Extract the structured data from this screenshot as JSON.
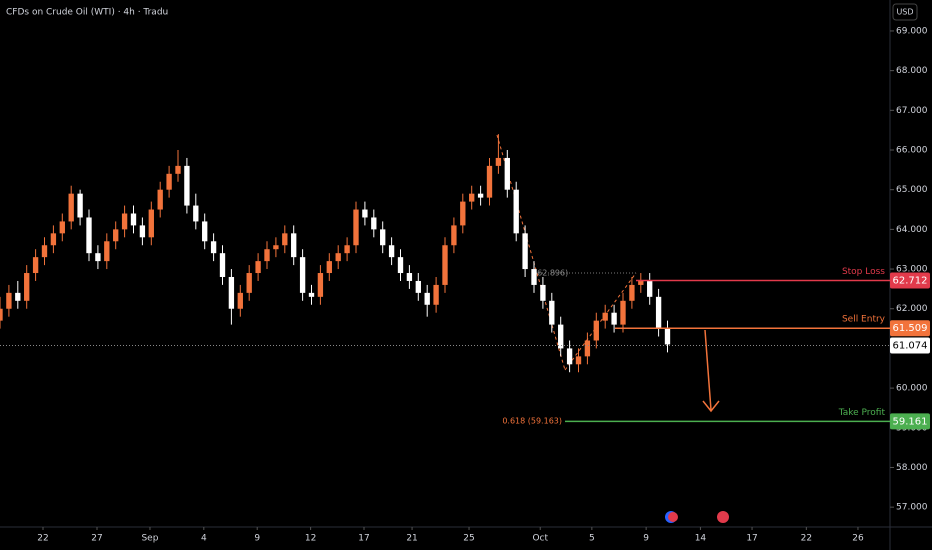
{
  "chart_data": {
    "type": "candlestick",
    "title": "CFDs on Crude Oil (WTI) · 4h · Tradu",
    "currency": "USD",
    "up_color": "#f2733b",
    "down_color": "#ffffff",
    "xlim": [
      0,
      100
    ],
    "ylim": [
      56.5,
      69.78
    ],
    "xticks": [
      {
        "value": 4.83,
        "label": "22"
      },
      {
        "value": 10.9,
        "label": "27"
      },
      {
        "value": 16.85,
        "label": "Sep"
      },
      {
        "value": 22.9,
        "label": "4"
      },
      {
        "value": 28.9,
        "label": "9"
      },
      {
        "value": 34.9,
        "label": "12"
      },
      {
        "value": 40.9,
        "label": "17"
      },
      {
        "value": 46.3,
        "label": "21"
      },
      {
        "value": 52.7,
        "label": "25"
      },
      {
        "value": 60.7,
        "label": "Oct"
      },
      {
        "value": 66.5,
        "label": "5"
      },
      {
        "value": 72.6,
        "label": "9"
      },
      {
        "value": 78.7,
        "label": "14"
      },
      {
        "value": 84.5,
        "label": "17"
      },
      {
        "value": 90.6,
        "label": "22"
      },
      {
        "value": 96.4,
        "label": "26"
      }
    ],
    "yticks": [
      {
        "value": 57,
        "label": "57.000"
      },
      {
        "value": 58,
        "label": "58.000"
      },
      {
        "value": 59,
        "label": "59.000"
      },
      {
        "value": 60,
        "label": "60.000"
      },
      {
        "value": 61,
        "label": "61.000"
      },
      {
        "value": 62,
        "label": "62.000"
      },
      {
        "value": 63,
        "label": "63.000"
      },
      {
        "value": 64,
        "label": "64.000"
      },
      {
        "value": 65,
        "label": "65.000"
      },
      {
        "value": 66,
        "label": "66.000"
      },
      {
        "value": 67,
        "label": "67.000"
      },
      {
        "value": 68,
        "label": "68.000"
      },
      {
        "value": 69,
        "label": "69.000"
      }
    ],
    "x": [
      0,
      1,
      2,
      3,
      4,
      5,
      6,
      7,
      8,
      9,
      10,
      11,
      12,
      13,
      14,
      15,
      16,
      17,
      18,
      19,
      20,
      21,
      22,
      23,
      24,
      25,
      26,
      27,
      28,
      29,
      30,
      31,
      32,
      33,
      34,
      35,
      36,
      37,
      38,
      39,
      40,
      41,
      42,
      43,
      44,
      45,
      46,
      47,
      48,
      49,
      50,
      51,
      52,
      53,
      54,
      55,
      56,
      57,
      58,
      59,
      60,
      61,
      62,
      63,
      64,
      65,
      66,
      67,
      68,
      69,
      70,
      71,
      72,
      73,
      74,
      75
    ],
    "open": [
      61.7,
      62.0,
      62.4,
      62.2,
      62.9,
      63.3,
      63.6,
      63.9,
      64.2,
      64.9,
      64.3,
      63.4,
      63.2,
      63.7,
      64.0,
      64.4,
      64.1,
      63.8,
      64.5,
      65.0,
      65.4,
      65.6,
      64.6,
      64.2,
      63.7,
      63.4,
      62.8,
      62.0,
      62.4,
      62.9,
      63.2,
      63.5,
      63.6,
      63.9,
      63.3,
      62.4,
      62.3,
      62.9,
      63.2,
      63.4,
      63.6,
      64.5,
      64.3,
      64.0,
      63.6,
      63.3,
      62.9,
      62.7,
      62.4,
      62.1,
      62.6,
      63.6,
      64.1,
      64.7,
      64.9,
      64.8,
      65.6,
      65.8,
      65.0,
      63.9,
      63.0,
      62.6,
      62.2,
      61.6,
      61.0,
      60.6,
      60.8,
      61.2,
      61.7,
      61.9,
      61.6,
      62.2,
      62.6,
      62.7,
      62.3,
      61.5
    ],
    "high": [
      62.3,
      62.6,
      62.7,
      63.1,
      63.5,
      63.8,
      64.1,
      64.4,
      65.1,
      65.0,
      64.5,
      63.6,
      63.9,
      64.2,
      64.6,
      64.6,
      64.3,
      64.7,
      65.2,
      65.6,
      66.0,
      65.8,
      64.9,
      64.4,
      63.9,
      63.6,
      63.0,
      62.6,
      63.1,
      63.4,
      63.7,
      63.8,
      64.1,
      64.1,
      63.5,
      62.6,
      63.1,
      63.4,
      63.6,
      63.8,
      64.7,
      64.7,
      64.5,
      64.2,
      63.8,
      63.5,
      63.1,
      62.9,
      62.6,
      62.8,
      63.8,
      64.3,
      64.9,
      65.1,
      65.1,
      65.8,
      66.4,
      66.0,
      65.2,
      64.1,
      63.2,
      62.8,
      62.4,
      61.8,
      61.2,
      61.0,
      61.4,
      61.9,
      62.1,
      62.1,
      62.4,
      62.8,
      62.9,
      62.9,
      62.5,
      61.7
    ],
    "low": [
      61.5,
      61.8,
      62.0,
      62.0,
      62.7,
      63.1,
      63.4,
      63.7,
      64.0,
      64.1,
      63.2,
      63.0,
      63.0,
      63.5,
      63.8,
      63.9,
      63.6,
      63.6,
      64.3,
      64.8,
      65.2,
      64.4,
      64.0,
      63.5,
      63.2,
      62.6,
      61.6,
      61.8,
      62.2,
      62.7,
      63.0,
      63.3,
      63.4,
      63.1,
      62.2,
      62.1,
      62.1,
      62.7,
      63.0,
      63.2,
      63.4,
      64.1,
      63.8,
      63.4,
      63.1,
      62.7,
      62.5,
      62.2,
      61.8,
      61.9,
      62.4,
      63.4,
      63.9,
      64.5,
      64.6,
      64.6,
      65.4,
      64.8,
      63.7,
      62.8,
      62.4,
      62.0,
      61.4,
      60.8,
      60.4,
      60.4,
      60.6,
      61.0,
      61.5,
      61.4,
      61.4,
      62.0,
      62.4,
      62.1,
      61.3,
      60.9
    ],
    "close": [
      62.0,
      62.4,
      62.2,
      62.9,
      63.3,
      63.6,
      63.9,
      64.2,
      64.9,
      64.3,
      63.4,
      63.2,
      63.7,
      64.0,
      64.4,
      64.1,
      63.8,
      64.5,
      65.0,
      65.4,
      65.6,
      64.6,
      64.2,
      63.7,
      63.4,
      62.8,
      62.0,
      62.4,
      62.9,
      63.2,
      63.5,
      63.6,
      63.9,
      63.3,
      62.4,
      62.3,
      62.9,
      63.2,
      63.4,
      63.6,
      64.5,
      64.3,
      64.0,
      63.6,
      63.3,
      62.9,
      62.7,
      62.4,
      62.1,
      62.6,
      63.6,
      64.1,
      64.7,
      64.9,
      64.8,
      65.6,
      65.8,
      65.0,
      63.9,
      63.0,
      62.6,
      62.2,
      61.6,
      61.0,
      60.6,
      60.8,
      61.2,
      61.7,
      61.9,
      61.6,
      62.2,
      62.6,
      62.7,
      62.3,
      61.5,
      61.1
    ],
    "levels": [
      {
        "name": "Stop Loss",
        "value": 62.712,
        "color": "#e23a4b"
      },
      {
        "name": "Sell Entry",
        "value": 61.509,
        "color": "#f2733b"
      },
      {
        "name": "Take Profit",
        "value": 59.161,
        "color": "#4caf50"
      }
    ],
    "last_price": 61.074,
    "annotations": [
      "(62.896)",
      "0.618 (59.163)"
    ]
  }
}
